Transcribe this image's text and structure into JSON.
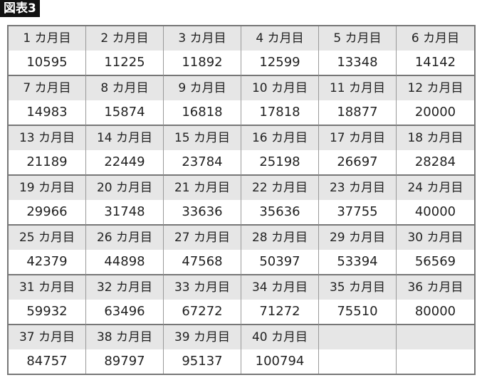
{
  "title": "図表3",
  "table": {
    "cells": [
      {
        "label": "1 カ月目",
        "value": "10595"
      },
      {
        "label": "2 カ月目",
        "value": "11225"
      },
      {
        "label": "3 カ月目",
        "value": "11892"
      },
      {
        "label": "4 カ月目",
        "value": "12599"
      },
      {
        "label": "5 カ月目",
        "value": "13348"
      },
      {
        "label": "6 カ月目",
        "value": "14142"
      },
      {
        "label": "7 カ月目",
        "value": "14983"
      },
      {
        "label": "8 カ月目",
        "value": "15874"
      },
      {
        "label": "9 カ月目",
        "value": "16818"
      },
      {
        "label": "10 カ月目",
        "value": "17818"
      },
      {
        "label": "11 カ月目",
        "value": "18877"
      },
      {
        "label": "12 カ月目",
        "value": "20000"
      },
      {
        "label": "13 カ月目",
        "value": "21189"
      },
      {
        "label": "14 カ月目",
        "value": "22449"
      },
      {
        "label": "15 カ月目",
        "value": "23784"
      },
      {
        "label": "16 カ月目",
        "value": "25198"
      },
      {
        "label": "17 カ月目",
        "value": "26697"
      },
      {
        "label": "18 カ月目",
        "value": "28284"
      },
      {
        "label": "19 カ月目",
        "value": "29966"
      },
      {
        "label": "20 カ月目",
        "value": "31748"
      },
      {
        "label": "21 カ月目",
        "value": "33636"
      },
      {
        "label": "22 カ月目",
        "value": "35636"
      },
      {
        "label": "23 カ月目",
        "value": "37755"
      },
      {
        "label": "24 カ月目",
        "value": "40000"
      },
      {
        "label": "25 カ月目",
        "value": "42379"
      },
      {
        "label": "26 カ月目",
        "value": "44898"
      },
      {
        "label": "27 カ月目",
        "value": "47568"
      },
      {
        "label": "28 カ月目",
        "value": "50397"
      },
      {
        "label": "29 カ月目",
        "value": "53394"
      },
      {
        "label": "30 カ月目",
        "value": "56569"
      },
      {
        "label": "31 カ月目",
        "value": "59932"
      },
      {
        "label": "32 カ月目",
        "value": "63496"
      },
      {
        "label": "33 カ月目",
        "value": "67272"
      },
      {
        "label": "34 カ月目",
        "value": "71272"
      },
      {
        "label": "35 カ月目",
        "value": "75510"
      },
      {
        "label": "36 カ月目",
        "value": "80000"
      },
      {
        "label": "37 カ月目",
        "value": "84757"
      },
      {
        "label": "38 カ月目",
        "value": "89797"
      },
      {
        "label": "39 カ月目",
        "value": "95137"
      },
      {
        "label": "40 カ月目",
        "value": "100794"
      },
      {
        "label": "",
        "value": ""
      },
      {
        "label": "",
        "value": ""
      }
    ]
  },
  "colors": {
    "header_bg": "#e6e6e6",
    "border": "#777777",
    "title_bg": "#111111"
  }
}
